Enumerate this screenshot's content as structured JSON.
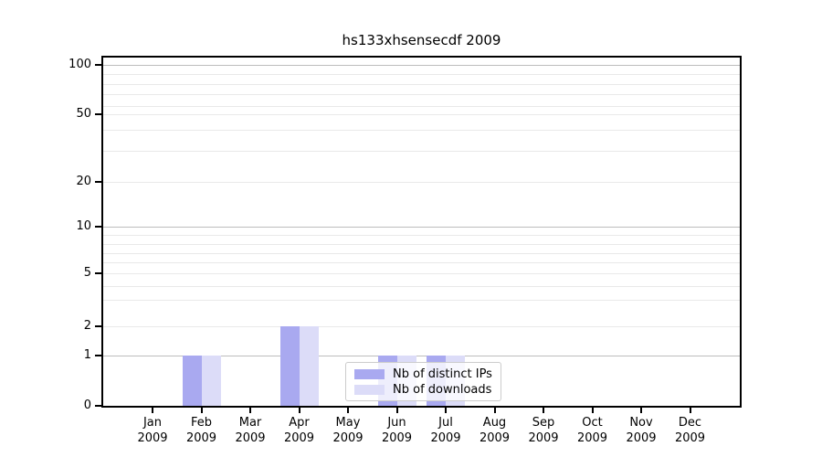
{
  "figure": {
    "title": "hs133xhsensecdf 2009"
  },
  "chart_data": {
    "type": "bar",
    "title": "hs133xhsensecdf 2009",
    "categories": [
      "Jan",
      "Feb",
      "Mar",
      "Apr",
      "May",
      "Jun",
      "Jul",
      "Aug",
      "Sep",
      "Oct",
      "Nov",
      "Dec"
    ],
    "x_year": "2009",
    "series": [
      {
        "name": "Nb of distinct IPs",
        "color": "#a9a9f0",
        "values": [
          0,
          1,
          0,
          2,
          0,
          1,
          1,
          0,
          0,
          0,
          0,
          0
        ]
      },
      {
        "name": "Nb of downloads",
        "color": "#dcdcf8",
        "values": [
          0,
          1,
          0,
          2,
          0,
          1,
          1,
          0,
          0,
          0,
          0,
          0
        ]
      }
    ],
    "yticks": [
      100,
      50,
      20,
      10,
      5,
      2,
      1,
      0
    ],
    "ylim": [
      0,
      100
    ],
    "yscale": "symlog",
    "grid": "both",
    "legend_position": "inside-lower-center"
  }
}
